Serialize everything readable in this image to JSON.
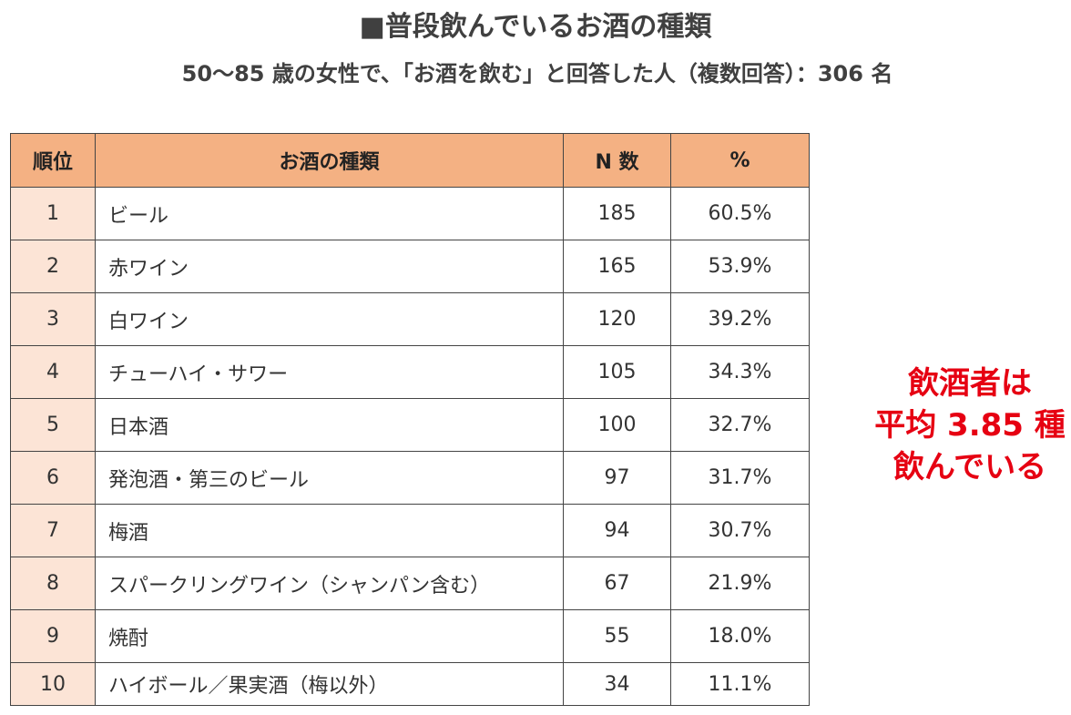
{
  "title": "■普段飲んでいるお酒の種類",
  "subtitle": "50～85 歳の女性で、「お酒を飲む」と回答した人（複数回答）：306 名",
  "table": {
    "headers": {
      "rank": "順位",
      "type": "お酒の種類",
      "n": "N 数",
      "pct": "%"
    },
    "rows": [
      {
        "rank": "1",
        "name": "ビール",
        "n": "185",
        "pct": "60.5%"
      },
      {
        "rank": "2",
        "name": "赤ワイン",
        "n": "165",
        "pct": "53.9%"
      },
      {
        "rank": "3",
        "name": "白ワイン",
        "n": "120",
        "pct": "39.2%"
      },
      {
        "rank": "4",
        "name": "チューハイ・サワー",
        "n": "105",
        "pct": "34.3%"
      },
      {
        "rank": "5",
        "name": "日本酒",
        "n": "100",
        "pct": "32.7%"
      },
      {
        "rank": "6",
        "name": "発泡酒・第三のビール",
        "n": "97",
        "pct": "31.7%"
      },
      {
        "rank": "7",
        "name": "梅酒",
        "n": "94",
        "pct": "30.7%"
      },
      {
        "rank": "8",
        "name": "スパークリングワイン（シャンパン含む）",
        "n": "67",
        "pct": "21.9%"
      },
      {
        "rank": "9",
        "name": "焼酎",
        "n": "55",
        "pct": "18.0%"
      },
      {
        "rank": "10",
        "name": "ハイボール／果実酒（梅以外）",
        "n": "34",
        "pct": "11.1%"
      }
    ]
  },
  "callout": {
    "line1": "飲酒者は",
    "line2": "平均 3.85 種",
    "line3": "飲んでいる"
  },
  "colors": {
    "header_bg": "#f4b183",
    "rank_bg": "#fce4d6",
    "callout": "#e60012"
  }
}
